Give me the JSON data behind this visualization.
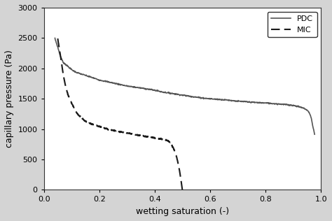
{
  "title": "",
  "xlabel": "wetting saturation (-)",
  "ylabel": "capillary pressure (Pa)",
  "xlim": [
    0.0,
    1.0
  ],
  "ylim": [
    0,
    3000
  ],
  "xticks": [
    0.0,
    0.2,
    0.4,
    0.6,
    0.8,
    1.0
  ],
  "yticks": [
    0,
    500,
    1000,
    1500,
    2000,
    2500,
    3000
  ],
  "pdc_color": "#555555",
  "mic_color": "#1a1a1a",
  "legend_labels": [
    "PDC",
    "MIC"
  ],
  "background_color": "#d4d4d4",
  "plot_bg_color": "#ffffff",
  "pdc_points": [
    [
      0.04,
      2490
    ],
    [
      0.05,
      2350
    ],
    [
      0.06,
      2200
    ],
    [
      0.07,
      2100
    ],
    [
      0.08,
      2060
    ],
    [
      0.09,
      2020
    ],
    [
      0.1,
      1980
    ],
    [
      0.12,
      1930
    ],
    [
      0.14,
      1900
    ],
    [
      0.16,
      1870
    ],
    [
      0.18,
      1840
    ],
    [
      0.2,
      1810
    ],
    [
      0.22,
      1790
    ],
    [
      0.25,
      1760
    ],
    [
      0.28,
      1730
    ],
    [
      0.3,
      1710
    ],
    [
      0.33,
      1690
    ],
    [
      0.36,
      1670
    ],
    [
      0.4,
      1640
    ],
    [
      0.43,
      1610
    ],
    [
      0.46,
      1590
    ],
    [
      0.5,
      1560
    ],
    [
      0.53,
      1540
    ],
    [
      0.56,
      1520
    ],
    [
      0.6,
      1500
    ],
    [
      0.63,
      1490
    ],
    [
      0.66,
      1480
    ],
    [
      0.7,
      1460
    ],
    [
      0.73,
      1450
    ],
    [
      0.76,
      1440
    ],
    [
      0.8,
      1430
    ],
    [
      0.83,
      1420
    ],
    [
      0.86,
      1410
    ],
    [
      0.88,
      1400
    ],
    [
      0.9,
      1390
    ],
    [
      0.91,
      1380
    ],
    [
      0.92,
      1370
    ],
    [
      0.93,
      1355
    ],
    [
      0.94,
      1340
    ],
    [
      0.95,
      1310
    ],
    [
      0.96,
      1250
    ],
    [
      0.965,
      1180
    ],
    [
      0.97,
      1060
    ],
    [
      0.975,
      960
    ],
    [
      0.977,
      910
    ]
  ],
  "mic_points": [
    [
      0.05,
      2490
    ],
    [
      0.06,
      2200
    ],
    [
      0.07,
      1900
    ],
    [
      0.08,
      1680
    ],
    [
      0.09,
      1530
    ],
    [
      0.1,
      1430
    ],
    [
      0.11,
      1340
    ],
    [
      0.12,
      1260
    ],
    [
      0.13,
      1210
    ],
    [
      0.14,
      1170
    ],
    [
      0.15,
      1130
    ],
    [
      0.17,
      1090
    ],
    [
      0.19,
      1060
    ],
    [
      0.21,
      1030
    ],
    [
      0.23,
      1000
    ],
    [
      0.25,
      980
    ],
    [
      0.27,
      960
    ],
    [
      0.3,
      935
    ],
    [
      0.33,
      910
    ],
    [
      0.36,
      885
    ],
    [
      0.39,
      865
    ],
    [
      0.41,
      848
    ],
    [
      0.43,
      830
    ],
    [
      0.44,
      820
    ],
    [
      0.45,
      800
    ],
    [
      0.455,
      780
    ],
    [
      0.46,
      750
    ],
    [
      0.465,
      710
    ],
    [
      0.47,
      660
    ],
    [
      0.475,
      600
    ],
    [
      0.48,
      520
    ],
    [
      0.485,
      420
    ],
    [
      0.49,
      300
    ],
    [
      0.495,
      160
    ],
    [
      0.498,
      50
    ],
    [
      0.5,
      0
    ]
  ]
}
